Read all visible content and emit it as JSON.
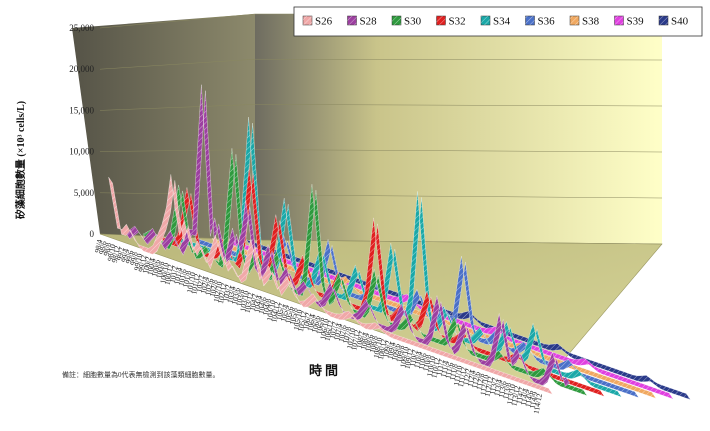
{
  "chart_data": {
    "type": "area",
    "subtype": "3d-ribbon",
    "title": "",
    "ylabel": "矽藻細胞數量 (×10³ cells/L)",
    "xlabel": "時間",
    "note": "備註：細胞數量為0代表無檢測到該藻類細胞數量。",
    "ylim": [
      0,
      25000
    ],
    "yticks": [
      "0",
      "5,000",
      "10,000",
      "15,000",
      "20,000",
      "25,000"
    ],
    "legend_position": "top-right",
    "grid": true,
    "categories": [
      "98/4",
      "98/6",
      "98/8",
      "98/10",
      "98/12",
      "99/2",
      "99/4",
      "99/6",
      "99/8",
      "99/10",
      "99/12",
      "100/2",
      "100/4",
      "100/6",
      "100/8",
      "100/10",
      "100/12",
      "101/2",
      "101/4",
      "101/6",
      "101/8",
      "101/10",
      "101/12",
      "102/2",
      "102/4",
      "102/6",
      "102/8",
      "102/10",
      "102/12",
      "103/2",
      "103/4",
      "103/6",
      "103/8",
      "103/10",
      "103/12",
      "104/2",
      "104/4",
      "104/6",
      "104/8",
      "104/10",
      "104/12",
      "105/2",
      "105/4",
      "105/6",
      "105/8",
      "105/10",
      "105/12",
      "106/2",
      "106/4",
      "106/6",
      "106/8",
      "106/10",
      "106/12",
      "107/2",
      "107/4",
      "107/6",
      "107/8",
      "107/10",
      "107/12",
      "108/2",
      "108/4",
      "108/6",
      "108/8",
      "108/10",
      "108/12",
      "109/2",
      "109/4",
      "109/6",
      "109/8",
      "109/10",
      "109/12",
      "110/2",
      "110/4",
      "110/6",
      "110/8",
      "110/10",
      "110/12",
      "111/2",
      "111/4",
      "111/6",
      "111/8",
      "111/10",
      "111/12",
      "112/2",
      "112/4",
      "112/6",
      "112/8",
      "112/10",
      "112/12",
      "113/2",
      "113/4",
      "113/6",
      "113/8",
      "113/10",
      "113/12",
      "114/2",
      "114/4",
      "114/6",
      "114/9",
      "114/12"
    ],
    "xtick_labels": [
      "98/4",
      "98/6",
      "98/8",
      "98/10",
      "98/12",
      "99/2",
      "99/4",
      "99/6",
      "99/8",
      "99/10",
      "99/12",
      "100/2",
      "100/4",
      "100/6",
      "100/8",
      "100/10",
      "100/12",
      "101/2",
      "101/4",
      "101/6",
      "101/8",
      "101/10",
      "101/12",
      "102/2",
      "102/4",
      "102/6",
      "102/8",
      "102/10",
      "102/12",
      "103/2",
      "103/4",
      "103/6",
      "103/8",
      "103/10",
      "103/12",
      "104/2",
      "104/4",
      "104/6",
      "104/8",
      "104/10",
      "104/12",
      "105/2",
      "105/4",
      "105/6",
      "105/8",
      "105/10",
      "105/12",
      "106/2",
      "106/4",
      "106/6",
      "106/8",
      "106/10",
      "106/12",
      "107/2",
      "107/4",
      "107/6",
      "107/8",
      "107/10",
      "107/12",
      "108/2",
      "108/4",
      "108/6",
      "108/8",
      "108/10",
      "108/12",
      "109/2",
      "109/4",
      "109/6",
      "109/8",
      "109/10",
      "109/12",
      "110/2",
      "110/4",
      "110/6",
      "110/8",
      "110/10",
      "110/12",
      "111/2",
      "111/4",
      "111/6",
      "111/8",
      "111/10",
      "111/12",
      "112/2",
      "112/4",
      "112/6",
      "112/8",
      "112/10",
      "112/12",
      "113/2",
      "113/4",
      "113/6",
      "113/8",
      "113/10",
      "113/12",
      "114/2",
      "114/4",
      "114/6",
      "114/9",
      "114/12"
    ],
    "series": [
      {
        "name": "S26",
        "color": "#f0a8a8",
        "peaks": [
          [
            0,
            7000
          ],
          [
            4,
            2000
          ],
          [
            12,
            3500
          ],
          [
            14,
            10000
          ],
          [
            17,
            5000
          ],
          [
            20,
            3000
          ],
          [
            24,
            4500
          ],
          [
            27,
            2000
          ],
          [
            32,
            5500
          ],
          [
            36,
            3000
          ],
          [
            40,
            2500
          ],
          [
            46,
            1500
          ],
          [
            54,
            900
          ],
          [
            60,
            600
          ]
        ]
      },
      {
        "name": "S28",
        "color": "#9c3fa0",
        "peaks": [
          [
            2,
            1500
          ],
          [
            6,
            2000
          ],
          [
            10,
            2500
          ],
          [
            14,
            3500
          ],
          [
            17,
            22000
          ],
          [
            20,
            6000
          ],
          [
            24,
            5500
          ],
          [
            27,
            9500
          ],
          [
            32,
            5000
          ],
          [
            36,
            3000
          ],
          [
            40,
            2000
          ],
          [
            46,
            3000
          ],
          [
            54,
            2500
          ],
          [
            62,
            3500
          ],
          [
            70,
            6000
          ],
          [
            76,
            4000
          ],
          [
            84,
            6500
          ],
          [
            88,
            3000
          ],
          [
            96,
            4000
          ],
          [
            99,
            1500
          ]
        ]
      },
      {
        "name": "S30",
        "color": "#2e9a3e",
        "peaks": [
          [
            2,
            1200
          ],
          [
            8,
            8000
          ],
          [
            14,
            1500
          ],
          [
            20,
            15000
          ],
          [
            25,
            3000
          ],
          [
            30,
            4000
          ],
          [
            38,
            14000
          ],
          [
            44,
            4000
          ],
          [
            52,
            6000
          ],
          [
            60,
            2000
          ],
          [
            70,
            3500
          ],
          [
            80,
            1200
          ],
          [
            90,
            1000
          ]
        ]
      },
      {
        "name": "S32",
        "color": "#e02020",
        "peaks": [
          [
            6,
            7500
          ],
          [
            14,
            2500
          ],
          [
            20,
            13000
          ],
          [
            26,
            8000
          ],
          [
            32,
            4000
          ],
          [
            40,
            3500
          ],
          [
            48,
            12000
          ],
          [
            54,
            2000
          ],
          [
            60,
            5000
          ],
          [
            68,
            1500
          ],
          [
            80,
            1000
          ]
        ]
      },
      {
        "name": "S34",
        "color": "#1aa8a8",
        "peaks": [
          [
            16,
            19000
          ],
          [
            24,
            10000
          ],
          [
            32,
            5000
          ],
          [
            40,
            4500
          ],
          [
            48,
            9000
          ],
          [
            54,
            17000
          ],
          [
            60,
            3000
          ],
          [
            68,
            2000
          ],
          [
            74,
            4000
          ],
          [
            80,
            5000
          ],
          [
            90,
            1000
          ]
        ]
      },
      {
        "name": "S36",
        "color": "#4a70c8",
        "peaks": [
          [
            20,
            4500
          ],
          [
            30,
            6000
          ],
          [
            40,
            3000
          ],
          [
            50,
            3500
          ],
          [
            56,
            2500
          ],
          [
            60,
            10000
          ],
          [
            68,
            2000
          ],
          [
            74,
            1500
          ],
          [
            84,
            1200
          ]
        ]
      },
      {
        "name": "S38",
        "color": "#f0a860",
        "peaks": [
          [
            30,
            1200
          ],
          [
            50,
            800
          ],
          [
            70,
            600
          ]
        ]
      },
      {
        "name": "S39",
        "color": "#e040e0",
        "peaks": [
          [
            40,
            1000
          ],
          [
            60,
            800
          ],
          [
            80,
            700
          ]
        ]
      },
      {
        "name": "S40",
        "color": "#2a3a8a",
        "peaks": [
          [
            50,
            900
          ],
          [
            70,
            700
          ],
          [
            90,
            600
          ]
        ]
      }
    ]
  }
}
